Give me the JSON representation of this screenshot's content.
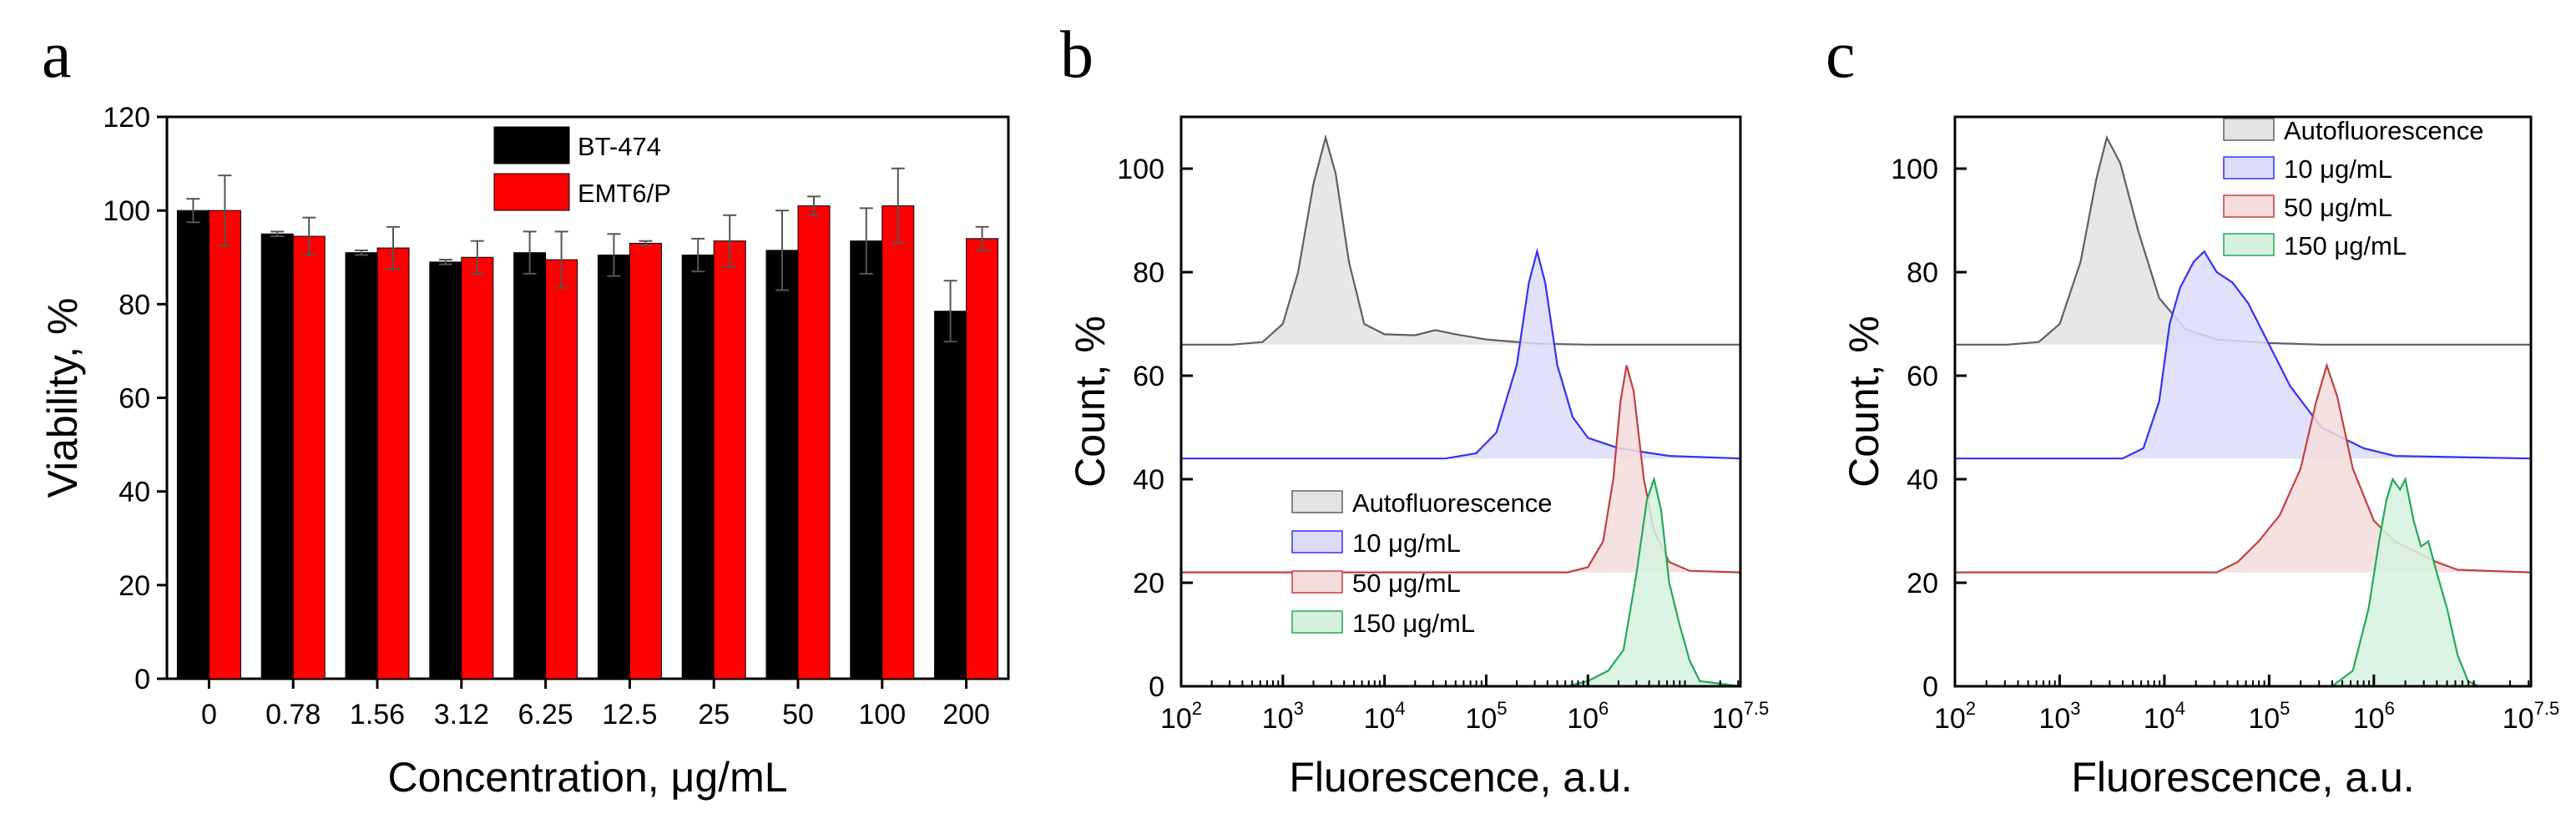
{
  "figure": {
    "panels": [
      {
        "letter": "a",
        "chart_data": {
          "type": "bar",
          "title": "",
          "xlabel": "Concentration, μg/mL",
          "ylabel": "Viability, %",
          "ylim": [
            0,
            120
          ],
          "yticks": [
            0,
            20,
            40,
            60,
            80,
            100,
            120
          ],
          "categories": [
            "0",
            "0.78",
            "1.56",
            "3.12",
            "6.25",
            "12.5",
            "25",
            "50",
            "100",
            "200"
          ],
          "series": [
            {
              "name": "BT-474",
              "color": "#000000",
              "values": [
                100,
                95,
                91,
                89,
                91,
                90.5,
                90.5,
                91.5,
                93.5,
                78.5
              ],
              "errors": [
                2.5,
                0.5,
                0.5,
                0.5,
                4.5,
                4.5,
                3.5,
                8.5,
                7,
                6.5
              ]
            },
            {
              "name": "EMT6/P",
              "color": "#ff0000",
              "values": [
                100,
                94.5,
                92,
                90,
                89.5,
                93,
                93.5,
                101,
                101,
                94
              ],
              "errors": [
                7.5,
                4,
                4.5,
                3.5,
                6,
                0.5,
                5.5,
                2,
                8,
                2.5
              ]
            }
          ],
          "legend_position": "top-center"
        }
      },
      {
        "letter": "b",
        "chart_data": {
          "type": "area",
          "title": "",
          "xlabel": "Fluorescence, a.u.",
          "ylabel": "Count, %",
          "xscale": "log",
          "xlim_log10": [
            2,
            7.5
          ],
          "ylim": [
            0,
            110
          ],
          "yticks": [
            0,
            20,
            40,
            60,
            80,
            100
          ],
          "xticks": [
            {
              "base": "10",
              "exp": "2"
            },
            {
              "base": "10",
              "exp": "3"
            },
            {
              "base": "10",
              "exp": "4"
            },
            {
              "base": "10",
              "exp": "5"
            },
            {
              "base": "10",
              "exp": "6"
            },
            {
              "base": "10",
              "exp": "7.5"
            }
          ],
          "legend_position": "bottom-left",
          "series": [
            {
              "name": "Autofluorescence",
              "color": "#606060",
              "fill": "#e3e3e3",
              "baseline": 66,
              "points": [
                [
                  2,
                  66
                ],
                [
                  2.5,
                  66
                ],
                [
                  2.8,
                  66.5
                ],
                [
                  3.0,
                  70
                ],
                [
                  3.15,
                  80
                ],
                [
                  3.3,
                  97
                ],
                [
                  3.42,
                  106
                ],
                [
                  3.52,
                  99
                ],
                [
                  3.65,
                  82
                ],
                [
                  3.8,
                  70
                ],
                [
                  4.0,
                  68
                ],
                [
                  4.3,
                  67.8
                ],
                [
                  4.5,
                  68.8
                ],
                [
                  4.7,
                  68
                ],
                [
                  5.0,
                  67
                ],
                [
                  5.5,
                  66.2
                ],
                [
                  6.0,
                  66
                ],
                [
                  7.5,
                  66
                ]
              ]
            },
            {
              "name": "10 μg/mL",
              "color": "#3333ee",
              "fill": "#dcdcf8",
              "baseline": 44,
              "points": [
                [
                  2,
                  44
                ],
                [
                  4.6,
                  44
                ],
                [
                  4.9,
                  45
                ],
                [
                  5.1,
                  49
                ],
                [
                  5.3,
                  62
                ],
                [
                  5.42,
                  78
                ],
                [
                  5.5,
                  84
                ],
                [
                  5.58,
                  78
                ],
                [
                  5.7,
                  62
                ],
                [
                  5.85,
                  52
                ],
                [
                  6.0,
                  48
                ],
                [
                  6.3,
                  46
                ],
                [
                  6.8,
                  44.5
                ],
                [
                  7.5,
                  44
                ]
              ]
            },
            {
              "name": "50 μg/mL",
              "color": "#c04040",
              "fill": "#f5dcdc",
              "baseline": 22,
              "points": [
                [
                  2,
                  22
                ],
                [
                  5.8,
                  22
                ],
                [
                  6.0,
                  23
                ],
                [
                  6.15,
                  28
                ],
                [
                  6.25,
                  40
                ],
                [
                  6.32,
                  55
                ],
                [
                  6.38,
                  62
                ],
                [
                  6.45,
                  57
                ],
                [
                  6.55,
                  40
                ],
                [
                  6.65,
                  30
                ],
                [
                  6.8,
                  24
                ],
                [
                  7.0,
                  22.3
                ],
                [
                  7.5,
                  22
                ]
              ]
            },
            {
              "name": "150 μg/mL",
              "color": "#22aa55",
              "fill": "#d6f2df",
              "baseline": 0,
              "points": [
                [
                  2,
                  0
                ],
                [
                  5.8,
                  0
                ],
                [
                  6.0,
                  1
                ],
                [
                  6.2,
                  3
                ],
                [
                  6.35,
                  7
                ],
                [
                  6.48,
                  22
                ],
                [
                  6.58,
                  36
                ],
                [
                  6.65,
                  40
                ],
                [
                  6.72,
                  34
                ],
                [
                  6.8,
                  20
                ],
                [
                  6.9,
                  12
                ],
                [
                  7.0,
                  5
                ],
                [
                  7.1,
                  1
                ],
                [
                  7.5,
                  0
                ]
              ]
            }
          ]
        }
      },
      {
        "letter": "c",
        "chart_data": {
          "type": "area",
          "title": "",
          "xlabel": "Fluorescence, a.u.",
          "ylabel": "Count, %",
          "xscale": "log",
          "xlim_log10": [
            2,
            7.5
          ],
          "ylim": [
            0,
            110
          ],
          "yticks": [
            0,
            20,
            40,
            60,
            80,
            100
          ],
          "xticks": [
            {
              "base": "10",
              "exp": "2"
            },
            {
              "base": "10",
              "exp": "3"
            },
            {
              "base": "10",
              "exp": "4"
            },
            {
              "base": "10",
              "exp": "5"
            },
            {
              "base": "10",
              "exp": "6"
            },
            {
              "base": "10",
              "exp": "7.5"
            }
          ],
          "legend_position": "top-right",
          "series": [
            {
              "name": "Autofluorescence",
              "color": "#606060",
              "fill": "#e3e3e3",
              "baseline": 66,
              "points": [
                [
                  2,
                  66
                ],
                [
                  2.5,
                  66
                ],
                [
                  2.8,
                  66.5
                ],
                [
                  3.0,
                  70
                ],
                [
                  3.2,
                  82
                ],
                [
                  3.35,
                  98
                ],
                [
                  3.45,
                  106
                ],
                [
                  3.58,
                  101
                ],
                [
                  3.75,
                  88
                ],
                [
                  3.95,
                  75
                ],
                [
                  4.2,
                  69
                ],
                [
                  4.5,
                  67
                ],
                [
                  5.0,
                  66.3
                ],
                [
                  5.5,
                  66
                ],
                [
                  7.5,
                  66
                ]
              ]
            },
            {
              "name": "10 μg/mL",
              "color": "#3333ee",
              "fill": "#dcdcf8",
              "baseline": 44,
              "points": [
                [
                  2,
                  44
                ],
                [
                  3.6,
                  44
                ],
                [
                  3.8,
                  46
                ],
                [
                  3.95,
                  55
                ],
                [
                  4.05,
                  70
                ],
                [
                  4.15,
                  77
                ],
                [
                  4.28,
                  82
                ],
                [
                  4.38,
                  84
                ],
                [
                  4.5,
                  80
                ],
                [
                  4.65,
                  78
                ],
                [
                  4.8,
                  74
                ],
                [
                  5.0,
                  66
                ],
                [
                  5.2,
                  58
                ],
                [
                  5.35,
                  54
                ],
                [
                  5.5,
                  50
                ],
                [
                  5.7,
                  48
                ],
                [
                  5.9,
                  46
                ],
                [
                  6.2,
                  44.5
                ],
                [
                  7.5,
                  44
                ]
              ]
            },
            {
              "name": "50 μg/mL",
              "color": "#c04040",
              "fill": "#f5dcdc",
              "baseline": 22,
              "points": [
                [
                  2,
                  22
                ],
                [
                  4.5,
                  22
                ],
                [
                  4.7,
                  24
                ],
                [
                  4.9,
                  28
                ],
                [
                  5.1,
                  33
                ],
                [
                  5.3,
                  42
                ],
                [
                  5.45,
                  55
                ],
                [
                  5.55,
                  62
                ],
                [
                  5.65,
                  56
                ],
                [
                  5.8,
                  42
                ],
                [
                  6.0,
                  32
                ],
                [
                  6.2,
                  28
                ],
                [
                  6.4,
                  26
                ],
                [
                  6.6,
                  24
                ],
                [
                  6.8,
                  22.5
                ],
                [
                  7.5,
                  22
                ]
              ]
            },
            {
              "name": "150 μg/mL",
              "color": "#22aa55",
              "fill": "#d6f2df",
              "baseline": 0,
              "points": [
                [
                  2,
                  0
                ],
                [
                  5.6,
                  0
                ],
                [
                  5.8,
                  3
                ],
                [
                  5.95,
                  15
                ],
                [
                  6.05,
                  28
                ],
                [
                  6.12,
                  36
                ],
                [
                  6.18,
                  40
                ],
                [
                  6.25,
                  38
                ],
                [
                  6.3,
                  40
                ],
                [
                  6.38,
                  32
                ],
                [
                  6.45,
                  27
                ],
                [
                  6.52,
                  28
                ],
                [
                  6.6,
                  22
                ],
                [
                  6.7,
                  15
                ],
                [
                  6.8,
                  6
                ],
                [
                  6.9,
                  1
                ],
                [
                  7.0,
                  0
                ],
                [
                  7.5,
                  0
                ]
              ]
            }
          ]
        }
      }
    ]
  }
}
